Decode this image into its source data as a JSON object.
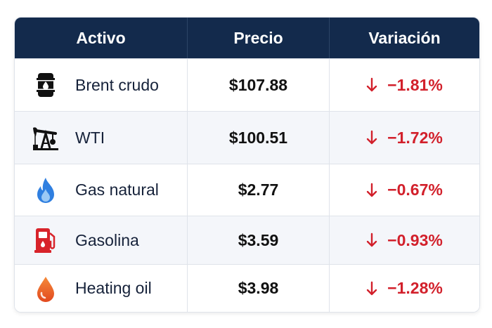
{
  "table": {
    "header": [
      "Activo",
      "Precio",
      "Variación"
    ],
    "rows": [
      [
        "Brent crudo",
        "$107.88",
        "−1.81%"
      ],
      [
        "WTI",
        "$100.51",
        "−1.72%"
      ],
      [
        "Gas natural",
        "$2.77",
        "−0.67%"
      ],
      [
        "Gasolina",
        "$3.59",
        "−0.93%"
      ],
      [
        "Heating oil",
        "$3.98",
        "−1.28%"
      ]
    ]
  }
}
